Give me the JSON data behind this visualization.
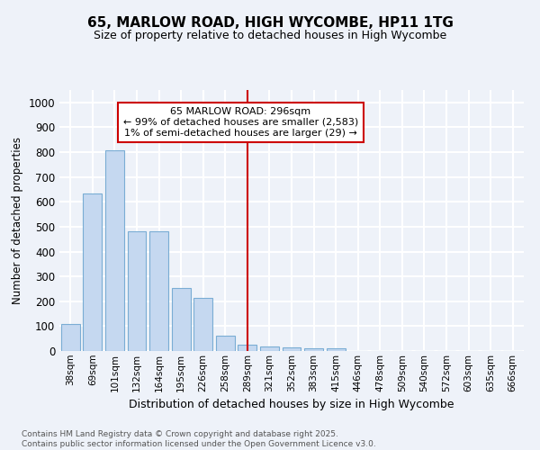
{
  "title1": "65, MARLOW ROAD, HIGH WYCOMBE, HP11 1TG",
  "title2": "Size of property relative to detached houses in High Wycombe",
  "xlabel": "Distribution of detached houses by size in High Wycombe",
  "ylabel": "Number of detached properties",
  "categories": [
    "38sqm",
    "69sqm",
    "101sqm",
    "132sqm",
    "164sqm",
    "195sqm",
    "226sqm",
    "258sqm",
    "289sqm",
    "321sqm",
    "352sqm",
    "383sqm",
    "415sqm",
    "446sqm",
    "478sqm",
    "509sqm",
    "540sqm",
    "572sqm",
    "603sqm",
    "635sqm",
    "666sqm"
  ],
  "values": [
    110,
    635,
    808,
    480,
    480,
    255,
    213,
    63,
    27,
    18,
    15,
    12,
    10,
    0,
    0,
    0,
    0,
    0,
    0,
    0,
    0
  ],
  "bar_color": "#c5d8f0",
  "bar_edge_color": "#7aadd4",
  "vline_bin_index": 8,
  "vline_color": "#cc0000",
  "annotation_label": "65 MARLOW ROAD: 296sqm",
  "annotation_line1": "← 99% of detached houses are smaller (2,583)",
  "annotation_line2": "1% of semi-detached houses are larger (29) →",
  "annotation_box_edge_color": "#cc0000",
  "ylim": [
    0,
    1050
  ],
  "yticks": [
    0,
    100,
    200,
    300,
    400,
    500,
    600,
    700,
    800,
    900,
    1000
  ],
  "background_color": "#eef2f9",
  "grid_color": "#ffffff",
  "footer_line1": "Contains HM Land Registry data © Crown copyright and database right 2025.",
  "footer_line2": "Contains public sector information licensed under the Open Government Licence v3.0."
}
